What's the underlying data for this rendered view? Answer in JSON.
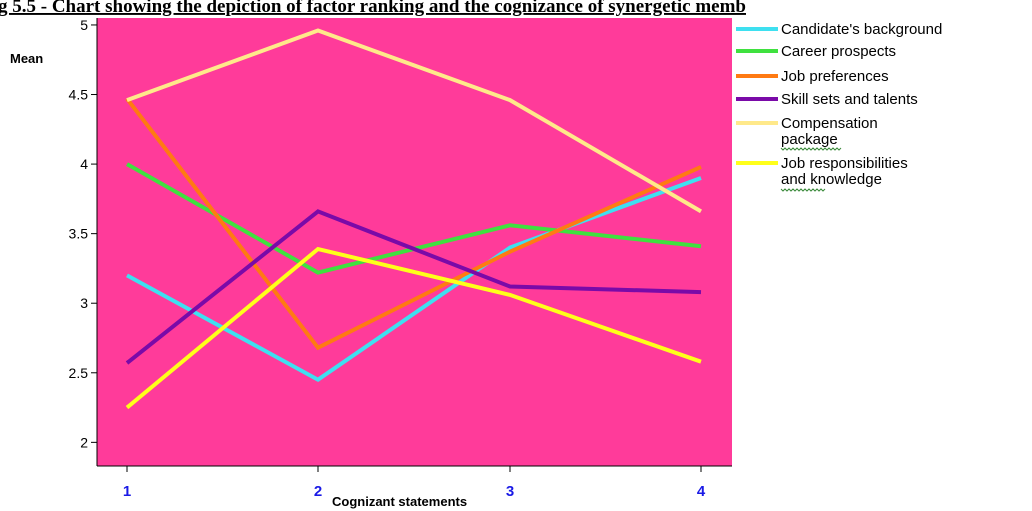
{
  "chart_data": {
    "type": "line",
    "title": "g 5.5 - Chart showing the depiction of factor ranking and the cognizance of synergetic memb",
    "xlabel": "Cognizant statements",
    "ylabel": "Mean",
    "x": [
      "1",
      "2",
      "3",
      "4"
    ],
    "ylim": [
      1.83,
      5.05
    ],
    "yticks": [
      "2",
      "2.5",
      "3",
      "3.5",
      "4",
      "4.5",
      "5"
    ],
    "grid": false,
    "legend_position": "right",
    "plot_background": "#ff3b9a",
    "xtick_color": "#1a1ae6",
    "series": [
      {
        "name": "Candidate's background",
        "name_lines": [
          "Candidate's background"
        ],
        "color": "#3ee0f0",
        "values": [
          3.2,
          2.45,
          3.4,
          3.9
        ]
      },
      {
        "name": "Career prospects",
        "name_lines": [
          "Career prospects"
        ],
        "color": "#3fe13f",
        "values": [
          4.0,
          3.22,
          3.56,
          3.41
        ]
      },
      {
        "name": "Job preferences",
        "name_lines": [
          "Job preferences"
        ],
        "color": "#ff7a12",
        "values": [
          4.47,
          2.68,
          3.37,
          3.98
        ]
      },
      {
        "name": "Skill sets and talents",
        "name_lines": [
          "Skill sets and talents"
        ],
        "color": "#7a0aa8",
        "values": [
          2.57,
          3.66,
          3.12,
          3.08
        ]
      },
      {
        "name": "Compensation package",
        "name_lines": [
          "Compensation",
          "package"
        ],
        "color": "#ffe98a",
        "values": [
          4.46,
          4.96,
          4.46,
          3.66
        ]
      },
      {
        "name": "Job responsibilities and knowledge",
        "name_lines": [
          "Job responsibilities",
          "and knowledge"
        ],
        "color": "#ffff1a",
        "values": [
          2.25,
          3.39,
          3.06,
          2.58
        ]
      }
    ]
  }
}
